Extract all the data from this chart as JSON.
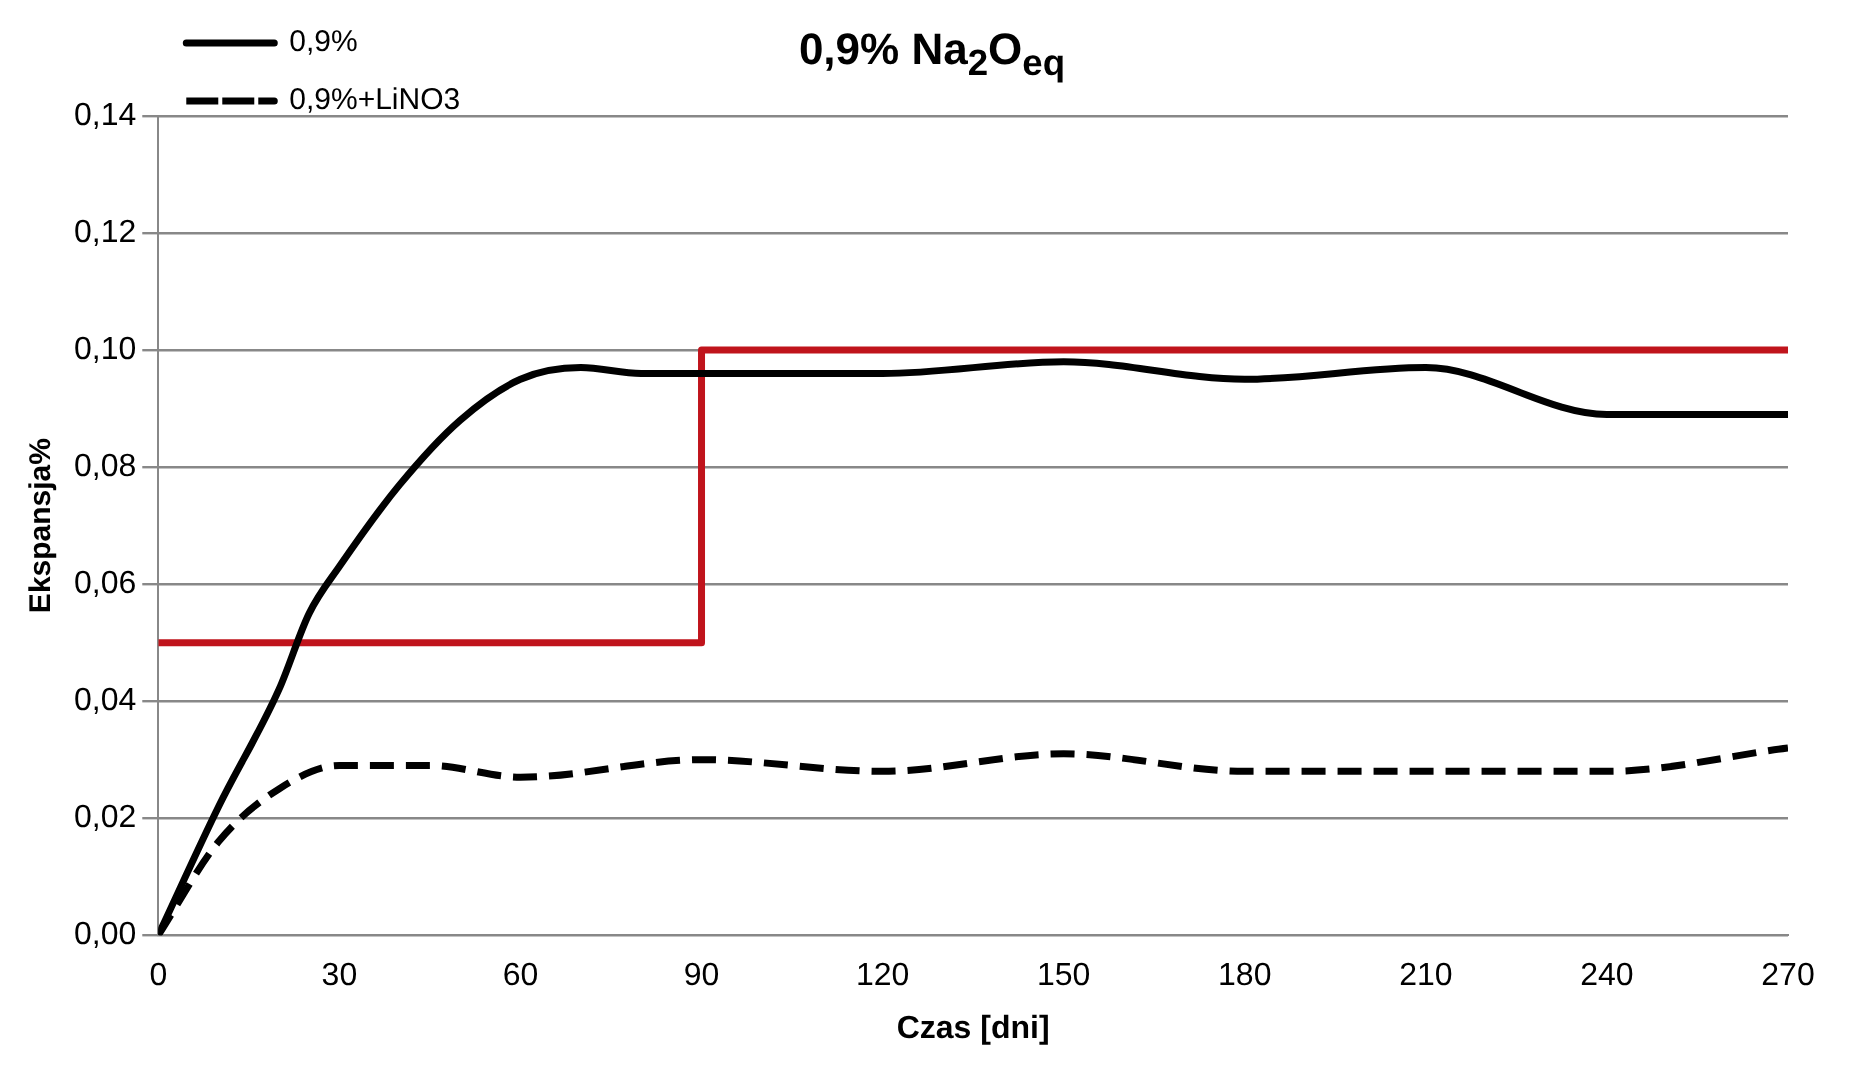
{
  "chart_data": {
    "type": "line",
    "title": "0,9% Na$_{2}$O$_{eq}$",
    "xlabel": "Czas [dni]",
    "ylabel": "Ekspansja%",
    "xlim": [
      0,
      270
    ],
    "xticks": [
      0,
      30,
      60,
      90,
      120,
      150,
      180,
      210,
      240,
      270
    ],
    "ylim": [
      0,
      0.14
    ],
    "yticks": [
      {
        "value": 0,
        "label": "0,00"
      },
      {
        "value": 0.02,
        "label": "0,02"
      },
      {
        "value": 0.04,
        "label": "0,04"
      },
      {
        "value": 0.06,
        "label": "0,06"
      },
      {
        "value": 0.08,
        "label": "0,08"
      },
      {
        "value": 0.1,
        "label": "0,10"
      },
      {
        "value": 0.12,
        "label": "0,12"
      },
      {
        "value": 0.14,
        "label": "0,14"
      }
    ],
    "grid": "y",
    "legend": "top left",
    "marker": "none",
    "series": [
      {
        "name": "0,9%",
        "color": "#000000",
        "line_style": "solid",
        "x": [
          0,
          10,
          20,
          25,
          30,
          40,
          50,
          60,
          70,
          80,
          90,
          120,
          150,
          180,
          210,
          240,
          270
        ],
        "values": [
          0,
          0.022,
          0.042,
          0.055,
          0.063,
          0.077,
          0.088,
          0.095,
          0.097,
          0.096,
          0.096,
          0.096,
          0.098,
          0.095,
          0.097,
          0.089,
          0.089
        ]
      },
      {
        "name": "0,9%+LiNO3",
        "color": "#000000",
        "line_style": "dashed",
        "x": [
          0,
          10,
          20,
          30,
          45,
          60,
          90,
          120,
          150,
          180,
          210,
          240,
          270
        ],
        "values": [
          0,
          0.016,
          0.025,
          0.029,
          0.029,
          0.027,
          0.03,
          0.028,
          0.031,
          0.028,
          0.028,
          0.028,
          0.032
        ]
      },
      {
        "type": "step",
        "color": "#c0141c",
        "line_style": "solid",
        "x": [
          0,
          90,
          270
        ],
        "values": [
          0.05,
          0.1,
          0.1
        ]
      }
    ]
  }
}
